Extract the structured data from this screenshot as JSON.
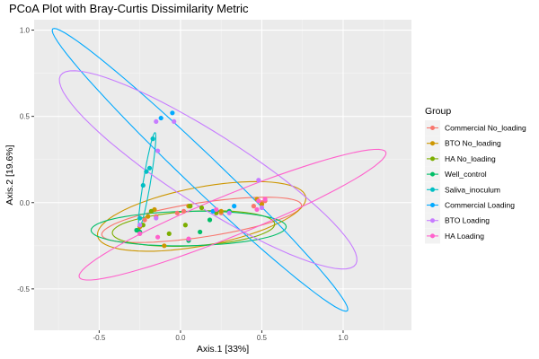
{
  "chart_data": {
    "type": "scatter",
    "title": "PCoA Plot with Bray-Curtis Dissimilarity Metric",
    "xlabel": "Axis.1   [33%]",
    "ylabel": "Axis.2   [19.6%]",
    "xlim": [
      -0.9,
      1.42
    ],
    "ylim": [
      -0.74,
      1.06
    ],
    "xticks": [
      -0.5,
      0.0,
      0.5,
      1.0
    ],
    "yticks": [
      -0.5,
      0.0,
      0.5,
      1.0
    ],
    "xtick_labels": [
      "-0.5",
      "0.0",
      "0.5",
      "1.0"
    ],
    "ytick_labels": [
      "-0.5",
      "0.0",
      "0.5",
      "1.0"
    ],
    "grid": true,
    "legend": {
      "title": "Group",
      "position": "right"
    },
    "series": [
      {
        "name": "Commercial No_loading",
        "color": "#F8766D",
        "points": [
          [
            -0.25,
            -0.14
          ],
          [
            -0.22,
            -0.1
          ],
          [
            -0.15,
            -0.08
          ],
          [
            -0.02,
            -0.06
          ],
          [
            0.02,
            -0.05
          ],
          [
            0.25,
            -0.06
          ],
          [
            0.45,
            -0.02
          ],
          [
            0.5,
            0.0
          ],
          [
            0.52,
            0.01
          ]
        ],
        "ellipse": {
          "cx": 0.13,
          "cy": -0.1,
          "rx": 0.62,
          "ry": 0.1,
          "angle": 8
        }
      },
      {
        "name": "BTO No_loading",
        "color": "#CD9600",
        "points": [
          [
            -0.25,
            -0.14
          ],
          [
            -0.2,
            -0.08
          ],
          [
            -0.16,
            -0.04
          ],
          [
            -0.1,
            -0.25
          ],
          [
            0.05,
            -0.02
          ],
          [
            0.25,
            -0.05
          ],
          [
            0.47,
            0.02
          ],
          [
            0.5,
            -0.01
          ]
        ],
        "ellipse": {
          "cx": 0.13,
          "cy": -0.08,
          "rx": 0.65,
          "ry": 0.17,
          "angle": 10
        }
      },
      {
        "name": "HA No_loading",
        "color": "#7CAE00",
        "points": [
          [
            -0.26,
            -0.16
          ],
          [
            -0.23,
            -0.13
          ],
          [
            -0.18,
            -0.05
          ],
          [
            -0.07,
            -0.18
          ],
          [
            0.03,
            -0.13
          ],
          [
            0.06,
            -0.02
          ],
          [
            0.13,
            -0.03
          ],
          [
            0.22,
            -0.06
          ]
        ],
        "ellipse": {
          "cx": 0.08,
          "cy": -0.15,
          "rx": 0.5,
          "ry": 0.1,
          "angle": 3
        }
      },
      {
        "name": "Well_control",
        "color": "#00BE67",
        "points": [
          [
            -0.27,
            -0.16
          ],
          [
            -0.25,
            -0.17
          ],
          [
            0.05,
            -0.22
          ],
          [
            0.12,
            -0.17
          ],
          [
            0.18,
            -0.1
          ],
          [
            0.3,
            -0.05
          ]
        ],
        "ellipse": {
          "cx": 0.05,
          "cy": -0.15,
          "rx": 0.6,
          "ry": 0.1,
          "angle": 1
        }
      },
      {
        "name": "Saliva_inoculum",
        "color": "#00BFC4",
        "points": [
          [
            -0.25,
            -0.09
          ],
          [
            -0.23,
            0.1
          ],
          [
            -0.21,
            0.18
          ],
          [
            -0.19,
            0.2
          ],
          [
            -0.17,
            0.37
          ]
        ],
        "ellipse": {
          "cx": -0.205,
          "cy": 0.13,
          "rx": 0.28,
          "ry": 0.022,
          "angle": 80
        }
      },
      {
        "name": "Commercial Loading",
        "color": "#00A9FF",
        "points": [
          [
            -0.12,
            0.49
          ],
          [
            -0.05,
            0.52
          ],
          [
            0.2,
            -0.05
          ],
          [
            0.33,
            -0.02
          ]
        ],
        "ellipse": {
          "cx": 0.12,
          "cy": 0.19,
          "rx": 1.22,
          "ry": 0.1,
          "angle": -42
        }
      },
      {
        "name": "BTO Loading",
        "color": "#C77CFF",
        "points": [
          [
            -0.15,
            0.47
          ],
          [
            -0.04,
            0.47
          ],
          [
            -0.14,
            0.3
          ],
          [
            -0.25,
            -0.13
          ],
          [
            -0.15,
            -0.09
          ],
          [
            0.3,
            -0.06
          ],
          [
            0.48,
            0.13
          ],
          [
            0.5,
            -0.03
          ]
        ],
        "ellipse": {
          "cx": 0.17,
          "cy": 0.19,
          "rx": 1.06,
          "ry": 0.21,
          "angle": -31
        }
      },
      {
        "name": "HA Loading",
        "color": "#FF61CC",
        "points": [
          [
            -0.25,
            -0.18
          ],
          [
            -0.14,
            -0.2
          ],
          [
            0.05,
            -0.21
          ],
          [
            0.22,
            -0.04
          ],
          [
            0.47,
            -0.04
          ],
          [
            0.48,
            0.01
          ],
          [
            0.52,
            0.02
          ]
        ],
        "ellipse": {
          "cx": 0.32,
          "cy": -0.07,
          "rx": 1.01,
          "ry": 0.12,
          "angle": 21
        }
      }
    ]
  }
}
